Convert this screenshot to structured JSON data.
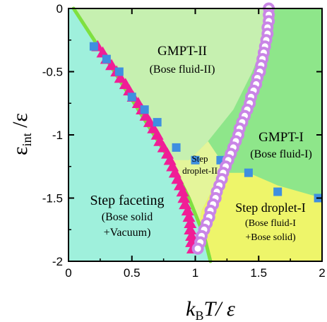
{
  "chart_data": {
    "type": "scatter",
    "xlabel": {
      "main": "k",
      "sub": "B",
      "rest": "T/ ε"
    },
    "ylabel": {
      "main": "ε",
      "sub": "int",
      "rest": " /ε"
    },
    "xlim": [
      0,
      2
    ],
    "ylim": [
      -2,
      0
    ],
    "x_ticks": [
      "0",
      "0.5",
      "1",
      "1.5",
      "2"
    ],
    "y_ticks": [
      "0",
      "-0.5",
      "-1",
      "-1.5",
      "-2"
    ],
    "x_tick_values": [
      0,
      0.5,
      1,
      1.5,
      2
    ],
    "y_tick_values": [
      0,
      -0.5,
      -1,
      -1.5,
      -2
    ],
    "colors": {
      "step_faceting": "#9ff0dc",
      "gmpt2": "#c6f0b0",
      "gmpt1": "#8ee68a",
      "step_droplet2": "#e4f59a",
      "step_droplet1": "#eef56a",
      "green_line": "#7fe040",
      "triangles": "#f01e96",
      "squares": "#3f8fe0",
      "circles": "#c985e6"
    },
    "regions": [
      {
        "name": "step_faceting",
        "lines": [
          "Step faceting",
          "(Bose solid",
          "+Vacuum)"
        ]
      },
      {
        "name": "gmpt2",
        "lines": [
          "GMPT-II",
          "(Bose fluid-II)"
        ]
      },
      {
        "name": "gmpt1",
        "lines": [
          "GMPT-I",
          "(Bose fluid-I)"
        ]
      },
      {
        "name": "step_droplet2",
        "lines": [
          "Step",
          "droplet-II"
        ]
      },
      {
        "name": "step_droplet1",
        "lines": [
          "Step droplet-I",
          "(Bose fluid-I",
          "+Bose solid)"
        ]
      }
    ],
    "series": [
      {
        "marker": "triangle",
        "points": [
          [
            0.23,
            -0.3
          ],
          [
            0.27,
            -0.35
          ],
          [
            0.3,
            -0.4
          ],
          [
            0.34,
            -0.45
          ],
          [
            0.38,
            -0.5
          ],
          [
            0.41,
            -0.55
          ],
          [
            0.45,
            -0.6
          ],
          [
            0.48,
            -0.65
          ],
          [
            0.51,
            -0.7
          ],
          [
            0.55,
            -0.75
          ],
          [
            0.58,
            -0.8
          ],
          [
            0.61,
            -0.85
          ],
          [
            0.64,
            -0.9
          ],
          [
            0.67,
            -0.95
          ],
          [
            0.7,
            -1.0
          ],
          [
            0.72,
            -1.05
          ],
          [
            0.75,
            -1.1
          ],
          [
            0.78,
            -1.15
          ],
          [
            0.8,
            -1.2
          ],
          [
            0.82,
            -1.25
          ],
          [
            0.84,
            -1.3
          ],
          [
            0.86,
            -1.35
          ],
          [
            0.88,
            -1.4
          ],
          [
            0.9,
            -1.45
          ],
          [
            0.91,
            -1.5
          ],
          [
            0.92,
            -1.55
          ],
          [
            0.94,
            -1.6
          ],
          [
            0.95,
            -1.65
          ],
          [
            0.96,
            -1.7
          ],
          [
            0.96,
            -1.75
          ],
          [
            0.97,
            -1.8
          ],
          [
            0.97,
            -1.85
          ],
          [
            0.98,
            -1.9
          ]
        ]
      },
      {
        "marker": "square",
        "points": [
          [
            0.2,
            -0.3
          ],
          [
            0.3,
            -0.4
          ],
          [
            0.4,
            -0.5
          ],
          [
            0.5,
            -0.7
          ],
          [
            0.6,
            -0.8
          ],
          [
            0.7,
            -0.9
          ],
          [
            0.85,
            -1.1
          ],
          [
            1.0,
            -1.2
          ],
          [
            1.2,
            -1.2
          ],
          [
            1.42,
            -1.3
          ],
          [
            1.65,
            -1.45
          ],
          [
            1.97,
            -1.5
          ]
        ]
      },
      {
        "marker": "circle",
        "points": [
          [
            1.58,
            0.0
          ],
          [
            1.58,
            -0.05
          ],
          [
            1.58,
            -0.1
          ],
          [
            1.57,
            -0.15
          ],
          [
            1.57,
            -0.2
          ],
          [
            1.56,
            -0.25
          ],
          [
            1.55,
            -0.3
          ],
          [
            1.54,
            -0.35
          ],
          [
            1.53,
            -0.4
          ],
          [
            1.52,
            -0.45
          ],
          [
            1.51,
            -0.5
          ],
          [
            1.49,
            -0.55
          ],
          [
            1.48,
            -0.6
          ],
          [
            1.46,
            -0.65
          ],
          [
            1.44,
            -0.7
          ],
          [
            1.43,
            -0.75
          ],
          [
            1.41,
            -0.8
          ],
          [
            1.39,
            -0.85
          ],
          [
            1.37,
            -0.9
          ],
          [
            1.35,
            -0.95
          ],
          [
            1.34,
            -1.0
          ],
          [
            1.32,
            -1.05
          ],
          [
            1.3,
            -1.1
          ],
          [
            1.28,
            -1.15
          ],
          [
            1.26,
            -1.2
          ],
          [
            1.24,
            -1.25
          ],
          [
            1.22,
            -1.3
          ],
          [
            1.21,
            -1.35
          ],
          [
            1.19,
            -1.4
          ],
          [
            1.17,
            -1.45
          ],
          [
            1.16,
            -1.5
          ],
          [
            1.14,
            -1.55
          ],
          [
            1.12,
            -1.6
          ],
          [
            1.11,
            -1.65
          ],
          [
            1.09,
            -1.7
          ],
          [
            1.07,
            -1.75
          ],
          [
            1.05,
            -1.8
          ],
          [
            1.04,
            -1.85
          ],
          [
            1.02,
            -1.9
          ]
        ]
      }
    ],
    "green_line": [
      [
        0.04,
        0.0
      ],
      [
        0.3,
        -0.4
      ],
      [
        0.55,
        -0.8
      ],
      [
        0.8,
        -1.2
      ],
      [
        0.95,
        -1.5
      ],
      [
        1.07,
        -1.8
      ],
      [
        1.12,
        -2.0
      ]
    ],
    "boundaries": {
      "gmpt2_gmpt1": [
        [
          0.87,
          -2.0
        ],
        [
          0.92,
          -1.8
        ],
        [
          0.95,
          -1.5
        ],
        [
          1.0,
          -1.25
        ],
        [
          1.1,
          -1.1
        ],
        [
          1.28,
          -0.85
        ],
        [
          1.42,
          -0.55
        ],
        [
          1.52,
          -0.3
        ],
        [
          1.6,
          0.0
        ]
      ],
      "gmpt1_sd": [
        [
          1.42,
          -1.3
        ],
        [
          1.65,
          -1.4
        ],
        [
          2.0,
          -1.5
        ]
      ]
    }
  }
}
